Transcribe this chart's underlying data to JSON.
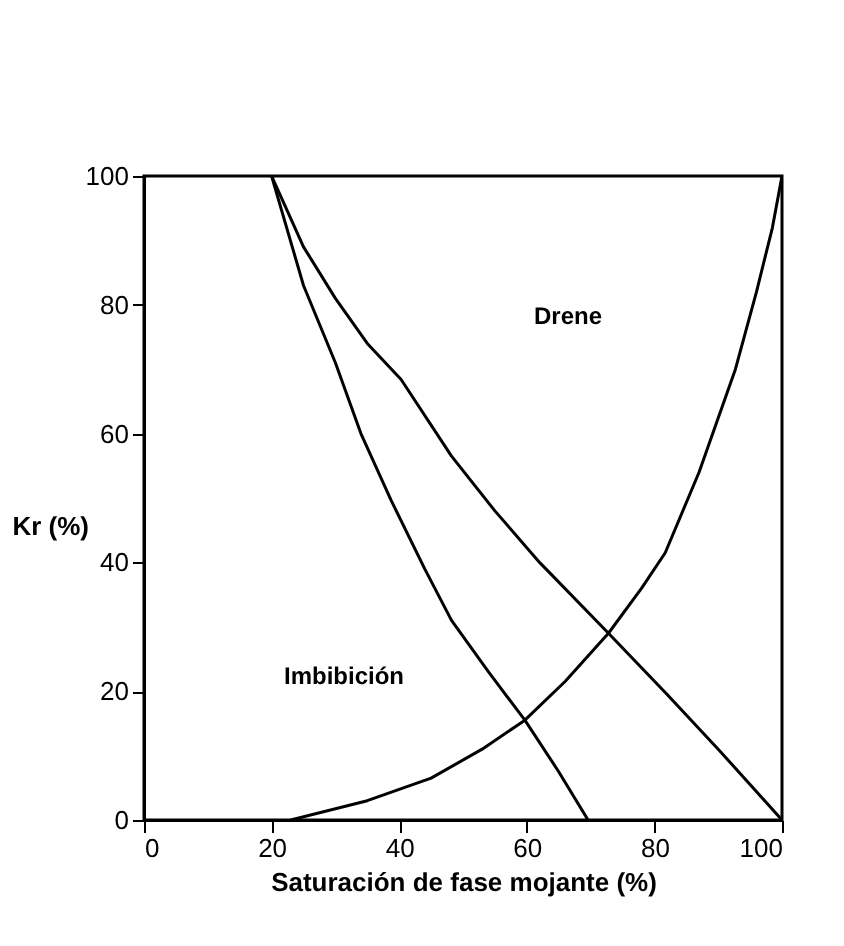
{
  "chart_data": {
    "type": "line",
    "xlabel": "Saturación de fase mojante (%)",
    "ylabel": "Kr (%)",
    "xlim": [
      0,
      100
    ],
    "ylim": [
      0,
      100
    ],
    "xticks": [
      0,
      20,
      40,
      60,
      80,
      100
    ],
    "yticks": [
      0,
      20,
      40,
      60,
      80,
      100
    ],
    "grid": false,
    "marker": "none",
    "line_style": "solid",
    "series": [
      {
        "color": "#000000",
        "x": [
          23,
          35,
          45,
          53,
          59.7,
          66,
          72.8,
          78,
          81.7,
          87,
          92.7,
          96,
          98.5,
          100
        ],
        "values": [
          0,
          3,
          6.5,
          11,
          15.5,
          21.5,
          29,
          36,
          41.5,
          54,
          70,
          82,
          92,
          100
        ]
      },
      {
        "color": "#000000",
        "x": [
          20,
          25,
          30,
          35,
          40.3,
          48.2,
          55,
          62,
          72.8,
          82,
          90,
          100
        ],
        "values": [
          100,
          89,
          81,
          74,
          68.4,
          56.5,
          48,
          40,
          29,
          19.5,
          11,
          0
        ]
      },
      {
        "color": "#000000",
        "x": [
          20,
          25,
          30,
          34,
          38.7,
          44,
          48.2,
          54,
          59.7,
          65,
          69.6
        ],
        "values": [
          100,
          83,
          71,
          60,
          49.7,
          39,
          31,
          23,
          15.5,
          7.5,
          0
        ]
      }
    ],
    "annotations": [
      "Drene",
      "Imbibición"
    ]
  }
}
